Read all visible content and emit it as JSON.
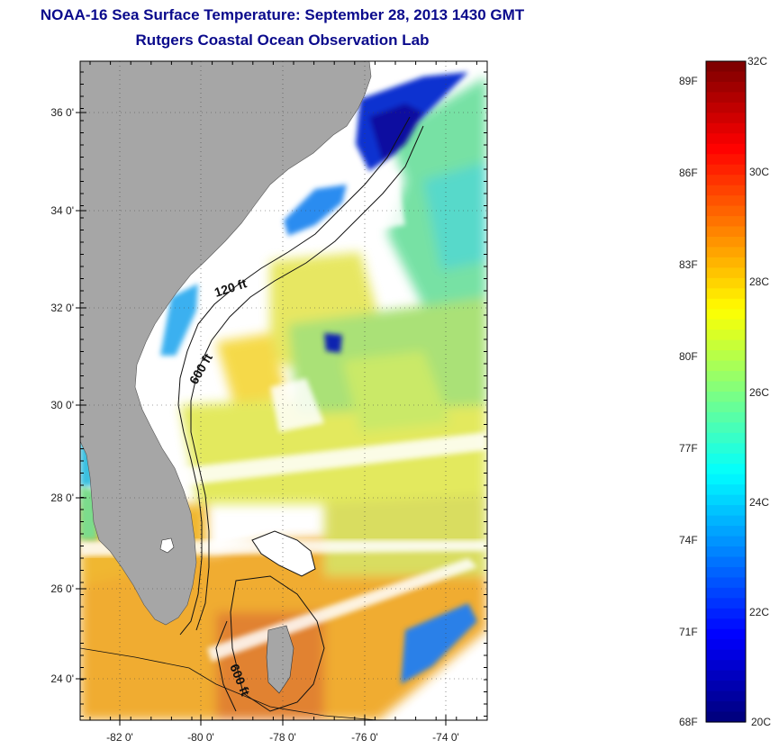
{
  "header": {
    "title": "NOAA-16 Sea Surface Temperature:  September 28, 2013 1430 GMT",
    "subtitle": "Rutgers Coastal Ocean Observation Lab"
  },
  "map": {
    "lon_ticks": [
      "-82 0'",
      "-80 0'",
      "-78 0'",
      "-76 0'",
      "-74 0'"
    ],
    "lat_ticks": [
      "36 0'",
      "34 0'",
      "32 0'",
      "30 0'",
      "28 0'",
      "26 0'",
      "24 0'"
    ],
    "lon_range": [
      -83,
      -73
    ],
    "lat_range": [
      23,
      37
    ],
    "contours": [
      "120 ft",
      "600 ft",
      "600 ft"
    ],
    "colors": {
      "land": "#a6a6a6",
      "cloud": "#ffffff"
    }
  },
  "colorbar": {
    "celsius_labels": [
      "32C",
      "30C",
      "28C",
      "26C",
      "24C",
      "22C",
      "20C"
    ],
    "fahrenheit_labels": [
      "89F",
      "86F",
      "83F",
      "80F",
      "77F",
      "74F",
      "71F",
      "68F"
    ],
    "range_c": [
      20,
      32
    ],
    "colormap": "jet"
  }
}
